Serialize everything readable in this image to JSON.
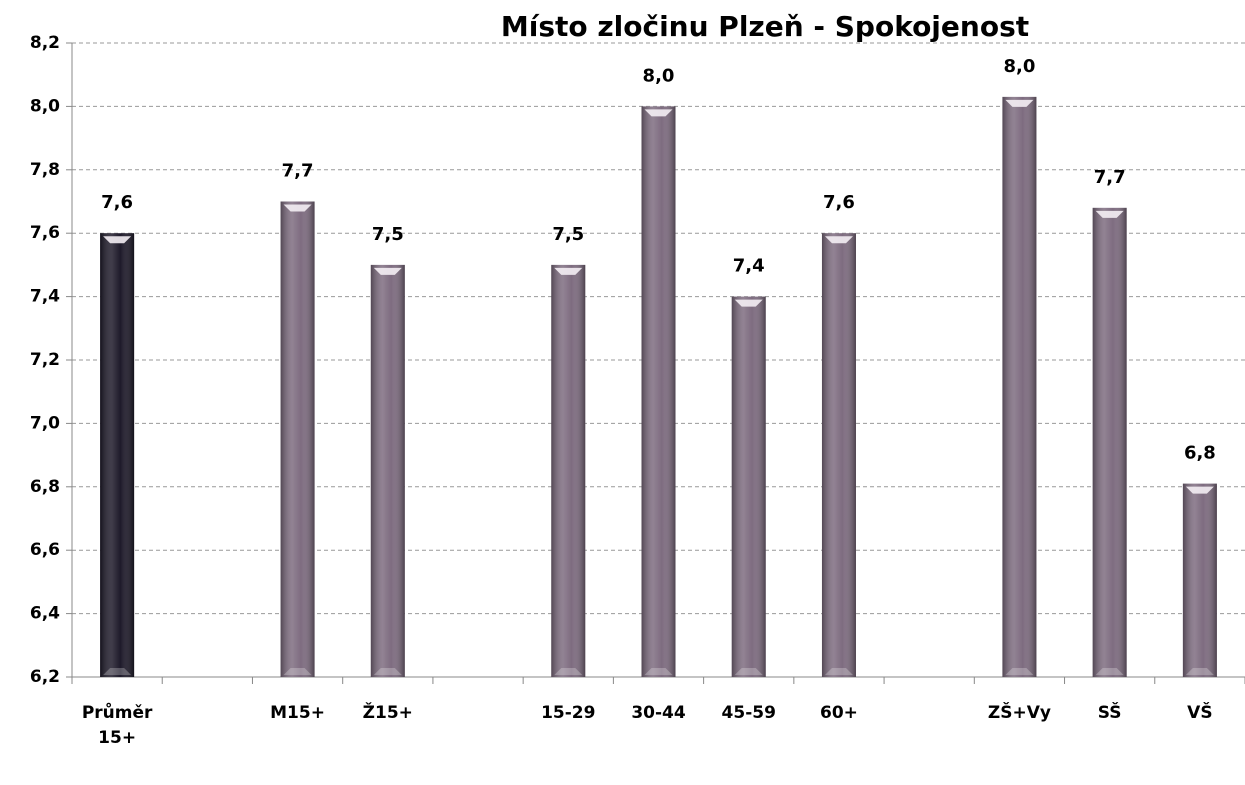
{
  "chart_data": {
    "type": "bar",
    "title": "Místo zločinu Plzeň - Spokojenost",
    "categories": [
      "Průměr 15+",
      null,
      "M15+",
      "Ž15+",
      null,
      "15-29",
      "30-44",
      "45-59",
      "60+",
      null,
      "ZŠ+Vy",
      "SŠ",
      "VŠ"
    ],
    "values": [
      7.6,
      null,
      7.7,
      7.5,
      null,
      7.5,
      8.0,
      7.4,
      7.6,
      null,
      8.03,
      7.68,
      6.81
    ],
    "value_labels": [
      "7,6",
      null,
      "7,7",
      "7,5",
      null,
      "7,5",
      "8,0",
      "7,4",
      "7,6",
      null,
      "8,0",
      "7,7",
      "6,8"
    ],
    "colors": [
      "#1e1a2a",
      null,
      "#7e6c80",
      "#7e6c80",
      null,
      "#7e6c80",
      "#7e6c80",
      "#7e6c80",
      "#7e6c80",
      null,
      "#7e6c80",
      "#7e6c80",
      "#7e6c80"
    ],
    "ylim": [
      6.2,
      8.2
    ],
    "yticks": [
      {
        "value": 6.2,
        "label": "6,2"
      },
      {
        "value": 6.4,
        "label": "6,4"
      },
      {
        "value": 6.6,
        "label": "6,6"
      },
      {
        "value": 6.8,
        "label": "6,8"
      },
      {
        "value": 7.0,
        "label": "7,0"
      },
      {
        "value": 7.2,
        "label": "7,2"
      },
      {
        "value": 7.4,
        "label": "7,4"
      },
      {
        "value": 7.6,
        "label": "7,6"
      },
      {
        "value": 7.8,
        "label": "7,8"
      },
      {
        "value": 8.0,
        "label": "8,0"
      },
      {
        "value": 8.2,
        "label": "8,2"
      }
    ],
    "grid": true
  }
}
